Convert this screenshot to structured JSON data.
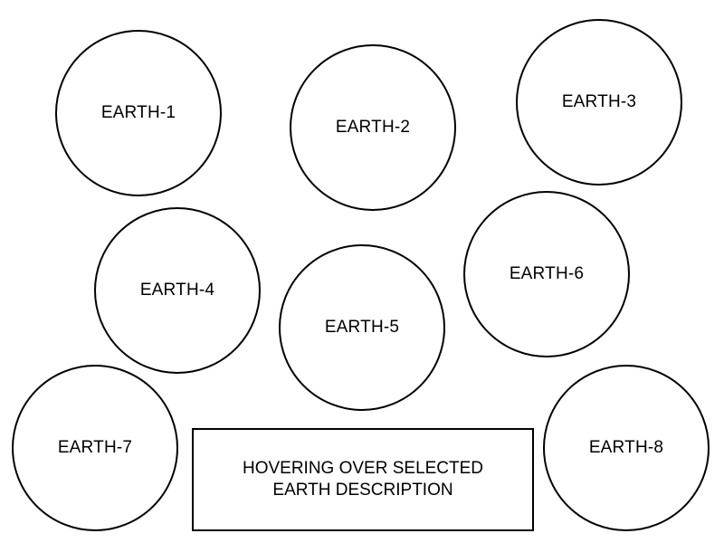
{
  "earths": [
    {
      "label": "EARTH-1"
    },
    {
      "label": "EARTH-2"
    },
    {
      "label": "EARTH-3"
    },
    {
      "label": "EARTH-4"
    },
    {
      "label": "EARTH-5"
    },
    {
      "label": "EARTH-6"
    },
    {
      "label": "EARTH-7"
    },
    {
      "label": "EARTH-8"
    }
  ],
  "description": {
    "line1": "HOVERING OVER SELECTED",
    "line2": "EARTH DESCRIPTION"
  }
}
